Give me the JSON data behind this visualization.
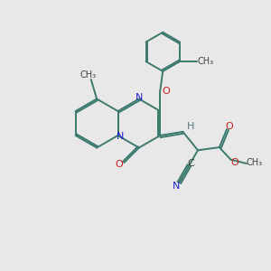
{
  "bg_color": "#e8e8e8",
  "bond_color": "#3d7a6e",
  "N_color": "#2020cc",
  "O_color": "#cc2020",
  "C_color": "#404040",
  "H_color": "#5a7a7a",
  "lw": 1.4,
  "figsize": [
    3.0,
    3.0
  ],
  "dpi": 100,
  "xlim": [
    0,
    10
  ],
  "ylim": [
    0,
    10
  ]
}
